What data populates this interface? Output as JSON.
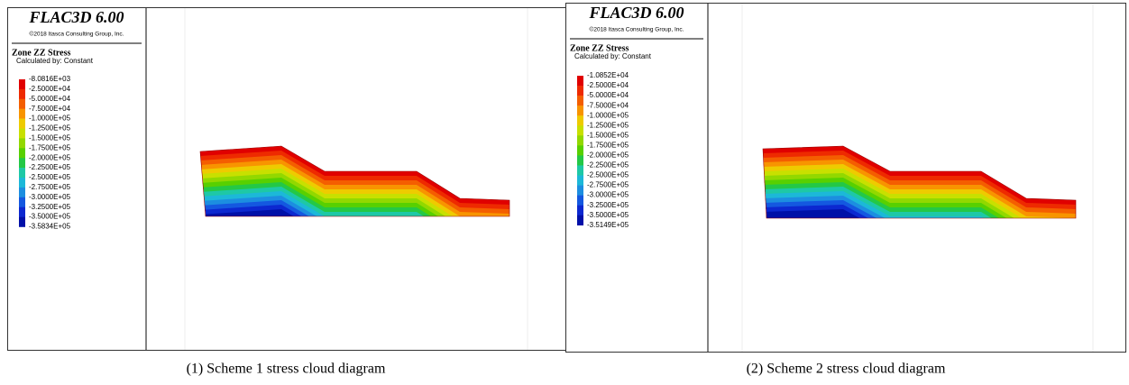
{
  "panels": [
    {
      "header": {
        "title": "FLAC3D 6.00",
        "copyright": "©2018 Itasca Consulting Group, Inc."
      },
      "legend": {
        "title": "Zone ZZ Stress",
        "subtitle": "Calculated by: Constant",
        "labels": [
          "-8.0816E+03",
          "-2.5000E+04",
          "-5.0000E+04",
          "-7.5000E+04",
          "-1.0000E+05",
          "-1.2500E+05",
          "-1.5000E+05",
          "-1.7500E+05",
          "-2.0000E+05",
          "-2.2500E+05",
          "-2.5000E+05",
          "-2.7500E+05",
          "-3.0000E+05",
          "-3.2500E+05",
          "-3.5000E+05",
          "-3.5834E+05"
        ],
        "colors": [
          "#e00000",
          "#ee2a00",
          "#f45e00",
          "#f89400",
          "#eecb00",
          "#c8e000",
          "#92d800",
          "#58d000",
          "#24c846",
          "#1ec8a6",
          "#1cb8d8",
          "#1c8ee0",
          "#1458e0",
          "#0c28d0",
          "#0010a8"
        ]
      },
      "caption": "(1) Scheme 1 stress cloud diagram"
    },
    {
      "header": {
        "title": "FLAC3D 6.00",
        "copyright": "©2018 Itasca Consulting Group, Inc."
      },
      "legend": {
        "title": "Zone ZZ Stress",
        "subtitle": "Calculated by: Constant",
        "labels": [
          "-1.0852E+04",
          "-2.5000E+04",
          "-5.0000E+04",
          "-7.5000E+04",
          "-1.0000E+05",
          "-1.2500E+05",
          "-1.5000E+05",
          "-1.7500E+05",
          "-2.0000E+05",
          "-2.2500E+05",
          "-2.5000E+05",
          "-2.7500E+05",
          "-3.0000E+05",
          "-3.2500E+05",
          "-3.5000E+05",
          "-3.5149E+05"
        ],
        "colors": [
          "#e00000",
          "#ee2a00",
          "#f45e00",
          "#f89400",
          "#eecb00",
          "#c8e000",
          "#92d800",
          "#58d000",
          "#24c846",
          "#1ec8a6",
          "#1cb8d8",
          "#1c8ee0",
          "#1458e0",
          "#0c28d0",
          "#0010a8"
        ]
      },
      "caption": "(2) Scheme 2 stress cloud diagram"
    }
  ]
}
